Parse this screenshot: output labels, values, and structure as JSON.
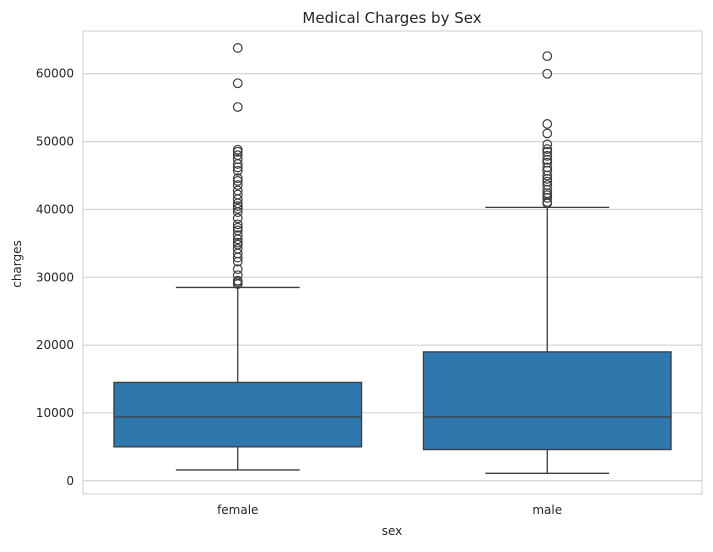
{
  "chart_data": {
    "type": "box",
    "title": "Medical Charges by Sex",
    "xlabel": "sex",
    "ylabel": "charges",
    "ylim": [
      -1950,
      66300
    ],
    "yticks": [
      0,
      10000,
      20000,
      30000,
      40000,
      50000,
      60000
    ],
    "grid": true,
    "colors": {
      "box_fill": "#2f78ae",
      "line": "#3d3d3d",
      "grid": "#cccccc",
      "spine": "#cccccc"
    },
    "categories": [
      "female",
      "male"
    ],
    "boxes": [
      {
        "category": "female",
        "whisker_low": 1600,
        "q1": 5000,
        "median": 9400,
        "q3": 14500,
        "whisker_high": 28500,
        "outliers": [
          29000,
          29300,
          29500,
          30300,
          31200,
          32300,
          32900,
          33500,
          34200,
          34800,
          35100,
          35600,
          36200,
          36900,
          37300,
          37800,
          38700,
          39600,
          40100,
          40500,
          40900,
          41500,
          42200,
          42800,
          43600,
          44200,
          44600,
          45700,
          46200,
          46700,
          47400,
          48000,
          48500,
          48800,
          55100,
          58600,
          63800
        ]
      },
      {
        "category": "male",
        "whisker_low": 1100,
        "q1": 4600,
        "median": 9400,
        "q3": 19000,
        "whisker_high": 40300,
        "outliers": [
          40900,
          41100,
          41700,
          42100,
          42400,
          42900,
          43600,
          44100,
          44500,
          45000,
          45700,
          46200,
          46900,
          47300,
          47900,
          48500,
          48900,
          49600,
          51200,
          52600,
          60000,
          62600
        ]
      }
    ]
  }
}
